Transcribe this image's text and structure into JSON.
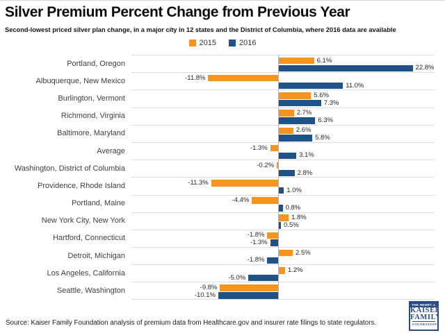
{
  "page": {
    "title": "Silver Premium Percent Change from Previous Year",
    "subtitle": "Second-lowest priced silver plan change, in a major city in 12 states and the District of Columbia, where 2016 data are available"
  },
  "legend": {
    "items": [
      {
        "label": "2015",
        "color": "#F7941D"
      },
      {
        "label": "2016",
        "color": "#1F5286"
      }
    ]
  },
  "chart_data": {
    "type": "bar",
    "orientation": "horizontal",
    "title": "Silver Premium Percent Change from Previous Year",
    "subtitle": "Second-lowest priced silver plan change, in a major city in 12 states and the District of Columbia, where 2016 data are available",
    "legend_position": "top-center",
    "gridlines": "horizontal row separators, light gray; vertical zero axis line",
    "xlim": [
      -24.8,
      26.5
    ],
    "value_label_format": "one decimal + percent sign",
    "categories": [
      "Portland, Oregon",
      "Albuquerque, New Mexico",
      "Burlington, Vermont",
      "Richmond, Virginia",
      "Baltimore, Maryland",
      "Average",
      "Washington, District of Columbia",
      "Providence, Rhode Island",
      "Portland, Maine",
      "New York City, New York",
      "Hartford, Connecticut",
      "Detroit, Michigan",
      "Los Angeles, California",
      "Seattle, Washington"
    ],
    "series": [
      {
        "name": "2015",
        "color": "#F7941D",
        "values": [
          6.1,
          -11.8,
          5.6,
          2.7,
          2.6,
          -1.3,
          -0.2,
          -11.3,
          -4.4,
          1.8,
          -1.8,
          2.5,
          1.2,
          -9.8
        ]
      },
      {
        "name": "2016",
        "color": "#1F5286",
        "values": [
          22.8,
          11.0,
          7.3,
          6.3,
          5.8,
          3.1,
          2.8,
          1.0,
          0.8,
          0.5,
          -1.3,
          -1.8,
          -5.0,
          -10.1
        ]
      }
    ]
  },
  "footer": {
    "source": "Source: Kaiser Family Foundation analysis of premium data from Healthcare.gov and insurer rate filings to state regulators.",
    "logo": {
      "line1": "THE HENRY J.",
      "line2": "KAISER",
      "line3": "FAMILY",
      "line4": "FOUNDATION"
    }
  }
}
